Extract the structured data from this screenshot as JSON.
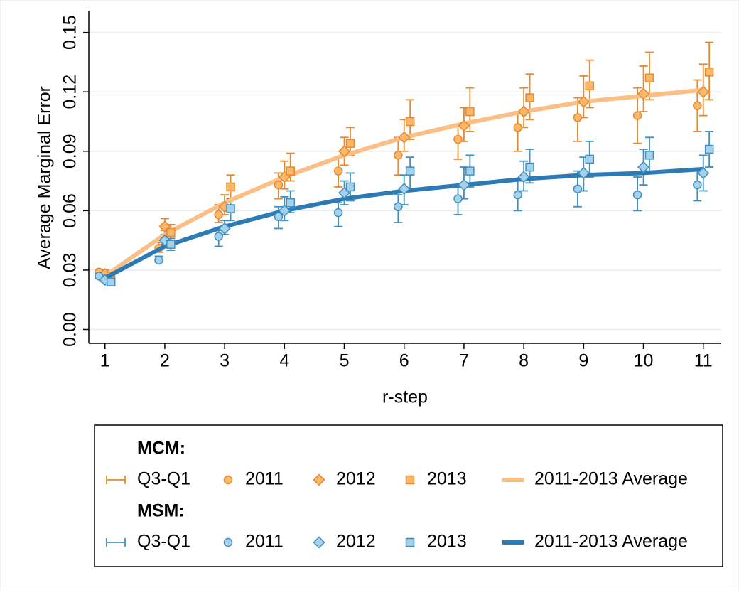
{
  "chart_data": {
    "type": "line",
    "ylabel": "Average Marginal Error",
    "xlabel": "r-step",
    "x": [
      1,
      2,
      3,
      4,
      5,
      6,
      7,
      8,
      9,
      10,
      11
    ],
    "xlim": [
      0.73,
      11.3
    ],
    "xticks": [
      1,
      2,
      3,
      4,
      5,
      6,
      7,
      8,
      9,
      10,
      11
    ],
    "ylim": [
      -0.007,
      0.161
    ],
    "yticks": [
      {
        "value": 0,
        "label": "0.00"
      },
      {
        "value": 0.03,
        "label": "0.03"
      },
      {
        "value": 0.06,
        "label": "0.06"
      },
      {
        "value": 0.09,
        "label": "0.09"
      },
      {
        "value": 0.12,
        "label": "0.12"
      },
      {
        "value": 0.15,
        "label": "0.15"
      }
    ],
    "grid": true,
    "groups": [
      {
        "name": "MCM:",
        "error_name": "Q3-Q1",
        "color": "#e8892d",
        "fill": "#fbb86b",
        "average": {
          "name": "2011-2013 Average",
          "color": "#fbbf85",
          "values": [
            0.027,
            0.048,
            0.064,
            0.077,
            0.088,
            0.097,
            0.104,
            0.11,
            0.115,
            0.118,
            0.121
          ]
        },
        "years": [
          {
            "name": "2011",
            "marker": "circle",
            "values": [
              0.029,
              0.041,
              0.058,
              0.073,
              0.08,
              0.088,
              0.096,
              0.102,
              0.107,
              0.108,
              0.113
            ],
            "low": [
              0.027,
              0.039,
              0.054,
              0.066,
              0.072,
              0.078,
              0.086,
              0.09,
              0.095,
              0.094,
              0.1
            ],
            "high": [
              0.03,
              0.044,
              0.063,
              0.079,
              0.087,
              0.097,
              0.103,
              0.11,
              0.117,
              0.122,
              0.126
            ]
          },
          {
            "name": "2012",
            "marker": "diamond",
            "values": [
              0.028,
              0.052,
              0.062,
              0.077,
              0.09,
              0.097,
              0.103,
              0.11,
              0.115,
              0.119,
              0.12
            ],
            "low": [
              0.027,
              0.05,
              0.058,
              0.071,
              0.083,
              0.09,
              0.095,
              0.102,
              0.107,
              0.11,
              0.108
            ],
            "high": [
              0.03,
              0.056,
              0.068,
              0.085,
              0.097,
              0.106,
              0.112,
              0.122,
              0.128,
              0.133,
              0.134
            ]
          },
          {
            "name": "2013",
            "marker": "square",
            "values": [
              0.027,
              0.049,
              0.072,
              0.08,
              0.094,
              0.105,
              0.11,
              0.117,
              0.123,
              0.127,
              0.13
            ],
            "low": [
              0.026,
              0.046,
              0.066,
              0.075,
              0.088,
              0.096,
              0.1,
              0.106,
              0.112,
              0.116,
              0.116
            ],
            "high": [
              0.029,
              0.053,
              0.078,
              0.089,
              0.102,
              0.116,
              0.122,
              0.129,
              0.136,
              0.14,
              0.145
            ]
          }
        ]
      },
      {
        "name": "MSM:",
        "error_name": "Q3-Q1",
        "color": "#3f8fc0",
        "fill": "#a6d1ea",
        "average": {
          "name": "2011-2013 Average",
          "color": "#2c7bb6",
          "values": [
            0.026,
            0.042,
            0.052,
            0.06,
            0.066,
            0.07,
            0.073,
            0.076,
            0.078,
            0.079,
            0.081
          ]
        },
        "years": [
          {
            "name": "2011",
            "marker": "circle",
            "values": [
              0.027,
              0.035,
              0.047,
              0.057,
              0.059,
              0.062,
              0.066,
              0.068,
              0.071,
              0.068,
              0.073
            ],
            "low": [
              0.026,
              0.034,
              0.042,
              0.051,
              0.052,
              0.054,
              0.058,
              0.06,
              0.062,
              0.06,
              0.065
            ],
            "high": [
              0.029,
              0.037,
              0.05,
              0.062,
              0.064,
              0.068,
              0.073,
              0.075,
              0.08,
              0.077,
              0.08
            ]
          },
          {
            "name": "2012",
            "marker": "diamond",
            "values": [
              0.025,
              0.045,
              0.051,
              0.06,
              0.069,
              0.071,
              0.073,
              0.077,
              0.079,
              0.082,
              0.079
            ],
            "low": [
              0.024,
              0.043,
              0.048,
              0.055,
              0.063,
              0.063,
              0.066,
              0.07,
              0.07,
              0.073,
              0.07
            ],
            "high": [
              0.027,
              0.048,
              0.055,
              0.067,
              0.075,
              0.078,
              0.082,
              0.085,
              0.087,
              0.091,
              0.088
            ]
          },
          {
            "name": "2013",
            "marker": "square",
            "values": [
              0.024,
              0.043,
              0.061,
              0.064,
              0.072,
              0.08,
              0.08,
              0.082,
              0.086,
              0.088,
              0.091
            ],
            "low": [
              0.023,
              0.04,
              0.055,
              0.059,
              0.065,
              0.071,
              0.072,
              0.074,
              0.077,
              0.08,
              0.082
            ],
            "high": [
              0.026,
              0.046,
              0.066,
              0.07,
              0.079,
              0.087,
              0.088,
              0.091,
              0.095,
              0.097,
              0.1
            ]
          }
        ]
      }
    ]
  }
}
